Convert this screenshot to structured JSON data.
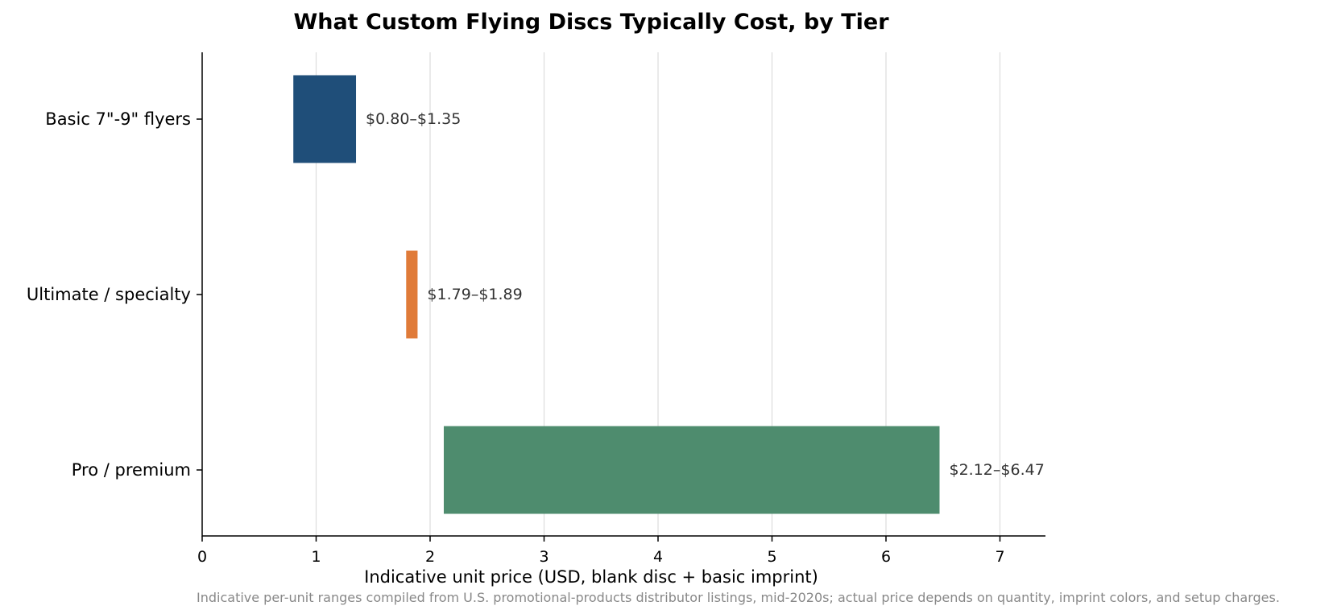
{
  "chart_data": {
    "type": "bar",
    "orientation": "horizontal",
    "title": "What Custom Flying Discs Typically Cost, by Tier",
    "xlabel": "Indicative unit price (USD, blank disc + basic imprint)",
    "ylabel": "",
    "xlim": [
      0,
      7.4
    ],
    "xticks": [
      "0",
      "1",
      "2",
      "3",
      "4",
      "5",
      "6",
      "7"
    ],
    "grid": "vertical",
    "legend": "none",
    "categories": [
      "Basic 7\"-9\" flyers",
      "Ultimate / specialty",
      "Pro / premium"
    ],
    "ranges": [
      {
        "low": 0.8,
        "high": 1.35,
        "label": "$0.80–$1.35",
        "color": "#1f4e79"
      },
      {
        "low": 1.79,
        "high": 1.89,
        "label": "$1.79–$1.89",
        "color": "#e07b39"
      },
      {
        "low": 2.12,
        "high": 6.47,
        "label": "$2.12–$6.47",
        "color": "#4e8c6e"
      }
    ],
    "note": "Indicative per-unit ranges compiled from U.S. promotional-products distributor listings, mid-2020s; actual price depends on quantity, imprint colors, and setup charges."
  }
}
